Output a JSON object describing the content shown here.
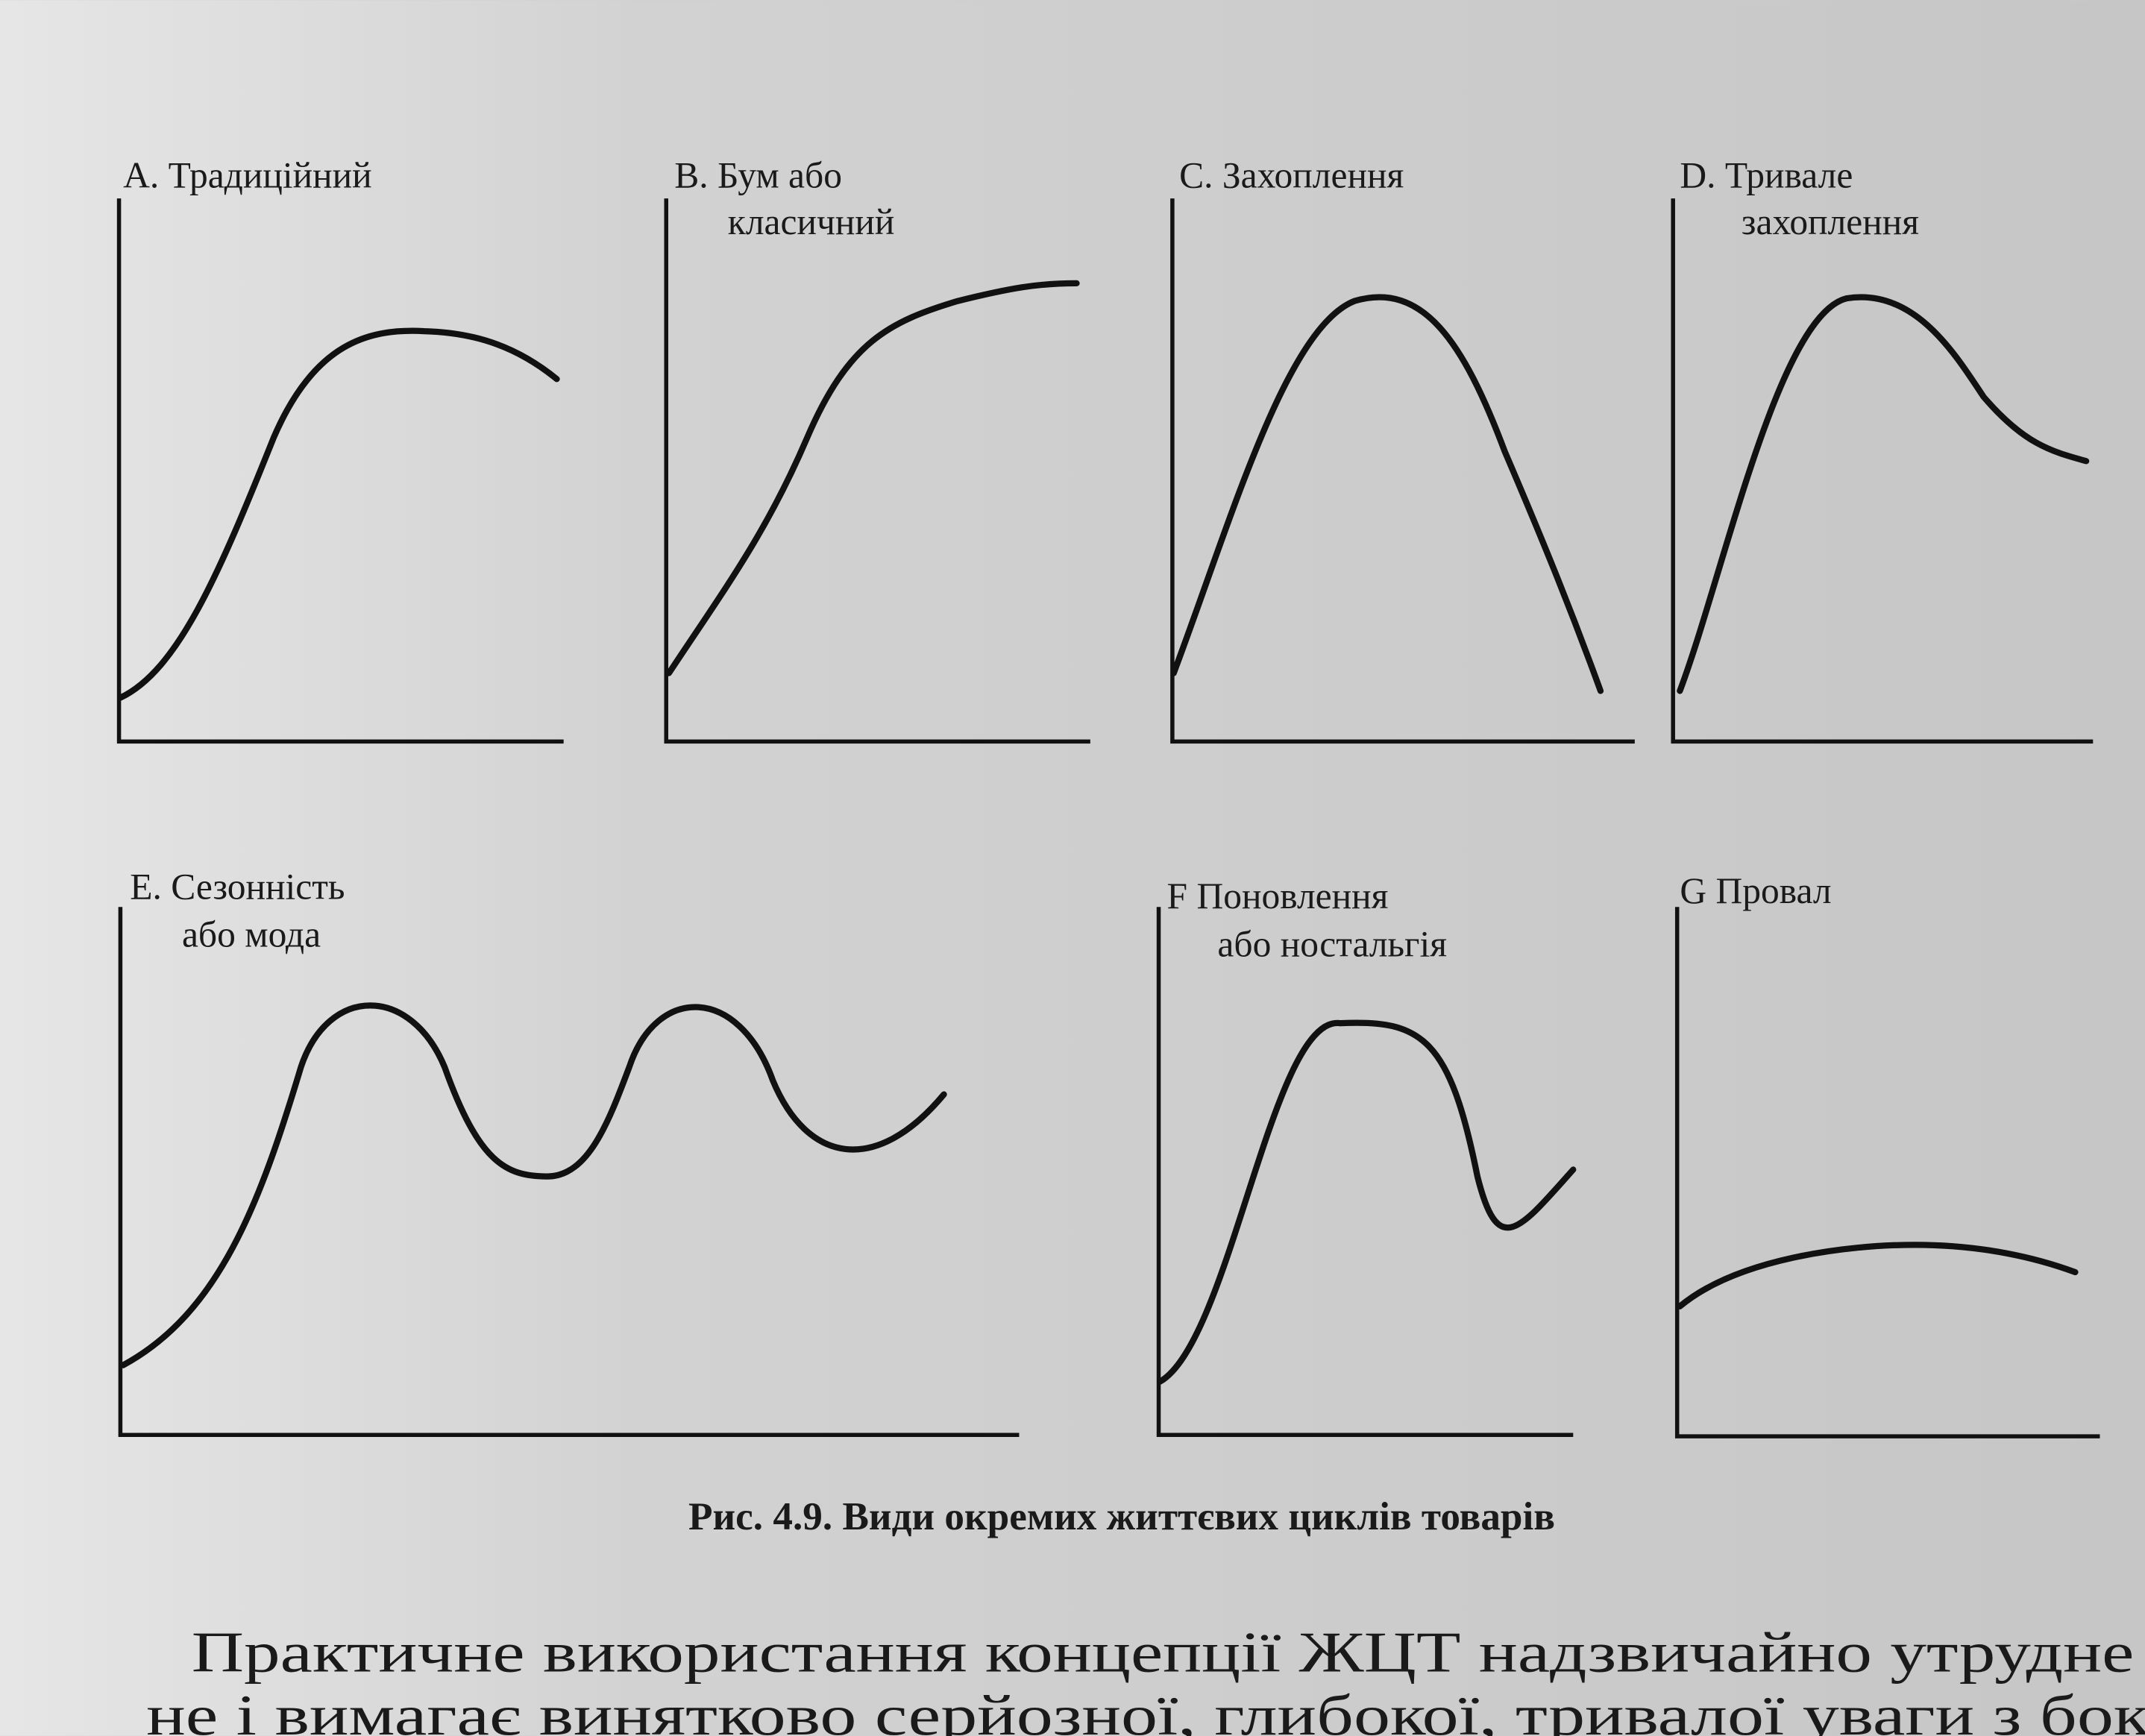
{
  "figure": {
    "panels": [
      {
        "lines": [
          "А. Традиційний"
        ]
      },
      {
        "lines": [
          "B. Бум або",
          "класичний"
        ]
      },
      {
        "lines": [
          "С. Захоплення"
        ]
      },
      {
        "lines": [
          "D. Тривале",
          "захоплення"
        ]
      },
      {
        "lines": [
          "Е. Сезонність",
          "або мода"
        ]
      },
      {
        "lines": [
          "F  Поновлення",
          "або ностальгія"
        ]
      },
      {
        "lines": [
          "G  Провал"
        ]
      }
    ],
    "caption": "Рис. 4.9. Види окремих життєвих циклів товарів"
  },
  "body": {
    "lines": [
      "Практичне використання концепції ЖЦТ надзвичайно утрудне",
      "не і вимагає винятково серйозної, глибокої, тривалої уваги з боку"
    ]
  }
}
